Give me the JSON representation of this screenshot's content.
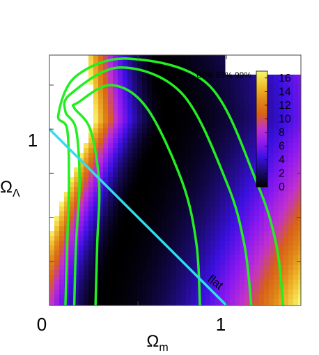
{
  "chart_data": {
    "type": "heatmap",
    "title": "",
    "xlabel": "Ω",
    "xlabel_sub": "m",
    "ylabel": "Ω",
    "ylabel_sub": "Λ",
    "xlim": [
      0,
      1.42
    ],
    "ylim": [
      0,
      1.42
    ],
    "x_ticks": [
      {
        "value": 0,
        "label": "0"
      },
      {
        "value": 1,
        "label": "1"
      }
    ],
    "y_ticks": [
      {
        "value": 1,
        "label": "1"
      }
    ],
    "colorbar": {
      "range": [
        0,
        17
      ],
      "ticks": [
        "0",
        "2",
        "4",
        "6",
        "8",
        "10",
        "12",
        "14",
        "16"
      ],
      "colors": [
        "#000000",
        "#1a0a6a",
        "#3a10e0",
        "#8a18f0",
        "#c030d0",
        "#d86018",
        "#e08818",
        "#f0c030",
        "#f8f870"
      ]
    },
    "confidence_levels": "68% 95% 99%",
    "contour_color": "#22ee22",
    "flat_line": {
      "label": "flat",
      "color": "#33ddee",
      "points": [
        [
          0,
          1
        ],
        [
          1,
          0
        ]
      ]
    },
    "contours": [
      {
        "level": "68%",
        "inner": [
          [
            0.26,
            0
          ],
          [
            0.27,
            0.35
          ],
          [
            0.28,
            0.7
          ],
          [
            0.23,
            1.0
          ],
          [
            0.14,
            1.12
          ]
        ],
        "outer": [
          [
            0.85,
            0
          ],
          [
            0.83,
            0.35
          ],
          [
            0.75,
            0.7
          ],
          [
            0.55,
            1.12
          ],
          [
            0.35,
            1.25
          ],
          [
            0.16,
            1.15
          ]
        ]
      },
      {
        "level": "95%",
        "inner": [
          [
            0.14,
            0
          ],
          [
            0.15,
            0.35
          ],
          [
            0.17,
            0.7
          ],
          [
            0.15,
            1.0
          ],
          [
            0.09,
            1.1
          ]
        ],
        "outer": [
          [
            1.14,
            0
          ],
          [
            1.1,
            0.35
          ],
          [
            1.0,
            0.7
          ],
          [
            0.75,
            1.2
          ],
          [
            0.4,
            1.35
          ],
          [
            0.12,
            1.2
          ]
        ]
      },
      {
        "level": "99%",
        "inner": [
          [
            0.09,
            0
          ],
          [
            0.1,
            0.35
          ],
          [
            0.11,
            0.7
          ],
          [
            0.1,
            1.0
          ],
          [
            0.05,
            1.08
          ]
        ],
        "outer": [
          [
            1.32,
            0
          ],
          [
            1.28,
            0.35
          ],
          [
            1.17,
            0.7
          ],
          [
            0.9,
            1.25
          ],
          [
            0.45,
            1.4
          ],
          [
            0.15,
            1.3
          ]
        ]
      }
    ]
  }
}
